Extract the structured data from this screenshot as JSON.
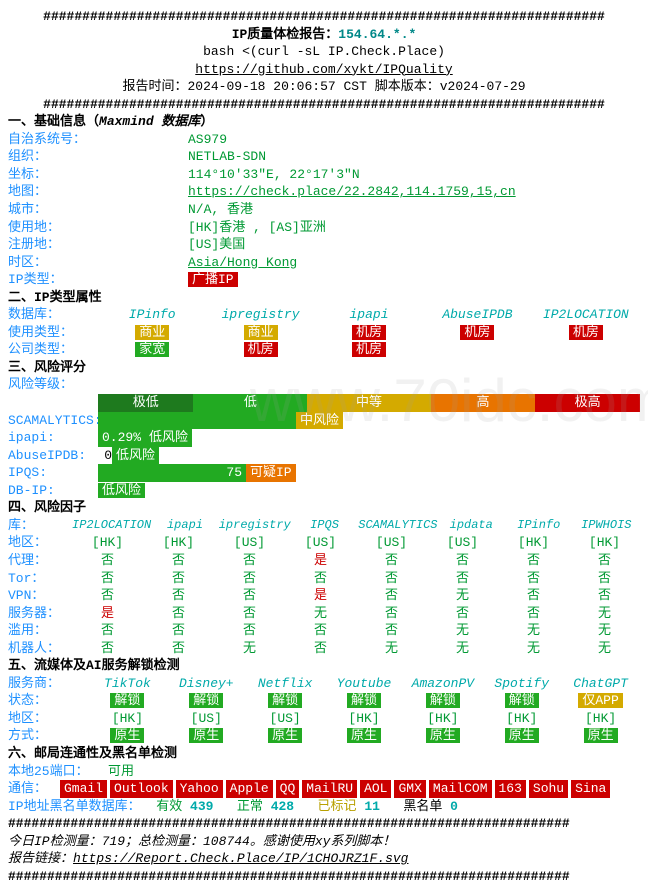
{
  "header": {
    "hashline": "########################################################################",
    "title_prefix": "IP质量体检报告：",
    "ip": "154.64.*.*",
    "bash_cmd": "bash <(curl -sL IP.Check.Place)",
    "github_url": "https://github.com/xykt/IPQuality",
    "time_prefix": "报告时间：",
    "time": "2024-09-18 20:06:57 CST",
    "version_prefix": "  脚本版本：",
    "version": "v2024-07-29"
  },
  "section1": {
    "title": "一、基础信息（",
    "title_ital": "Maxmind 数据库",
    "title_end": "）",
    "asn_lbl": "自治系统号：",
    "asn_val": "AS979",
    "org_lbl": "组织：",
    "org_val": "NETLAB-SDN",
    "coord_lbl": "坐标：",
    "coord_val": "114°10'33\"E, 22°17'3\"N",
    "map_lbl": "地图：",
    "map_val": "https://check.place/22.2842,114.1759,15,cn",
    "city_lbl": "城市：",
    "city_val": "N/A, 香港",
    "use_lbl": "使用地：",
    "use_val": "[HK]香港 , [AS]亚洲",
    "reg_lbl": "注册地：",
    "reg_val": "[US]美国",
    "tz_lbl": "时区：",
    "tz_val": "Asia/Hong_Kong",
    "type_lbl": "IP类型：",
    "type_val": "广播IP"
  },
  "section2": {
    "title": "二、IP类型属性",
    "db_lbl": "数据库：",
    "cols": [
      "IPinfo",
      "ipregistry",
      "ipapi",
      "AbuseIPDB",
      "IP2LOCATION"
    ],
    "usetype_lbl": "使用类型：",
    "usetype": [
      "商业",
      "商业",
      "机房",
      "机房",
      "机房"
    ],
    "usetype_colors": [
      "bg-yellow",
      "bg-yellow",
      "bg-red",
      "bg-red",
      "bg-red"
    ],
    "comptype_lbl": "公司类型：",
    "comptype": [
      "家宽",
      "机房",
      "机房"
    ],
    "comptype_colors": [
      "bg-green",
      "bg-red",
      "bg-red"
    ]
  },
  "section3": {
    "title": "三、风险评分",
    "level_lbl": "风险等级：",
    "levels": [
      "极低",
      "低",
      "中等",
      "高",
      "极高"
    ],
    "level_colors": [
      "#1e7a1e",
      "#22aa22",
      "#d4aa00",
      "#e87400",
      "#cc0000"
    ],
    "level_widths": [
      90,
      110,
      120,
      100,
      100
    ],
    "scam_lbl": "SCAMALYTICS:",
    "scam_bar_w": 190,
    "scam_txt": "中风险",
    "scam_cls": "bg-yellow",
    "ipapi_lbl": "ipapi:",
    "ipapi_val": "0.29%",
    "ipapi_bar_w": 60,
    "ipapi_txt": "低风险",
    "ipapi_cls": "bg-green",
    "abuse_lbl": "AbuseIPDB:",
    "abuse_pre": "0",
    "abuse_txt": "低风险",
    "abuse_cls": "bg-green",
    "ipqs_lbl": "IPQS:",
    "ipqs_bar_w": 140,
    "ipqs_val": "75",
    "ipqs_txt": "可疑IP",
    "ipqs_cls": "bg-orange",
    "dbip_lbl": "DB-IP:",
    "dbip_txt": "低风险",
    "dbip_cls": "bg-green"
  },
  "section4": {
    "title": "四、风险因子",
    "db_lbl": "库：",
    "cols": [
      "IP2LOCATION",
      "ipapi",
      "ipregistry",
      "IPQS",
      "SCAMALYTICS",
      "ipdata",
      "IPinfo",
      "IPWHOIS"
    ],
    "rows": [
      {
        "lbl": "地区：",
        "vals": [
          "[HK]",
          "[HK]",
          "[US]",
          "[US]",
          "[US]",
          "[US]",
          "[HK]",
          "[HK]"
        ],
        "cls": [
          "green",
          "green",
          "green",
          "green",
          "green",
          "green",
          "green",
          "green"
        ]
      },
      {
        "lbl": "代理：",
        "vals": [
          "否",
          "否",
          "否",
          "是",
          "否",
          "否",
          "否",
          "否"
        ],
        "cls": [
          "green",
          "green",
          "green",
          "red",
          "green",
          "green",
          "green",
          "green"
        ]
      },
      {
        "lbl": "Tor：",
        "vals": [
          "否",
          "否",
          "否",
          "否",
          "否",
          "否",
          "否",
          "否"
        ],
        "cls": [
          "green",
          "green",
          "green",
          "green",
          "green",
          "green",
          "green",
          "green"
        ]
      },
      {
        "lbl": "VPN：",
        "vals": [
          "否",
          "否",
          "否",
          "是",
          "否",
          "无",
          "否",
          "否"
        ],
        "cls": [
          "green",
          "green",
          "green",
          "red",
          "green",
          "green",
          "green",
          "green"
        ]
      },
      {
        "lbl": "服务器：",
        "vals": [
          "是",
          "否",
          "否",
          "无",
          "否",
          "否",
          "否",
          "无"
        ],
        "cls": [
          "red",
          "green",
          "green",
          "green",
          "green",
          "green",
          "green",
          "green"
        ]
      },
      {
        "lbl": "滥用：",
        "vals": [
          "否",
          "否",
          "否",
          "否",
          "否",
          "无",
          "无",
          "无"
        ],
        "cls": [
          "green",
          "green",
          "green",
          "green",
          "green",
          "green",
          "green",
          "green"
        ]
      },
      {
        "lbl": "机器人：",
        "vals": [
          "否",
          "否",
          "无",
          "否",
          "无",
          "无",
          "无",
          "无"
        ],
        "cls": [
          "green",
          "green",
          "green",
          "green",
          "green",
          "green",
          "green",
          "green"
        ]
      }
    ]
  },
  "section5": {
    "title": "五、流媒体及AI服务解锁检测",
    "prov_lbl": "服务商：",
    "cols": [
      "TikTok",
      "Disney+",
      "Netflix",
      "Youtube",
      "AmazonPV",
      "Spotify",
      "ChatGPT"
    ],
    "status_lbl": "状态：",
    "status": [
      "解锁",
      "解锁",
      "解锁",
      "解锁",
      "解锁",
      "解锁",
      "仅APP"
    ],
    "status_cls": [
      "bg-green",
      "bg-green",
      "bg-green",
      "bg-green",
      "bg-green",
      "bg-green",
      "bg-yellow"
    ],
    "region_lbl": "地区：",
    "region": [
      "[HK]",
      "[US]",
      "[US]",
      "[HK]",
      "[HK]",
      "[HK]",
      "[HK]"
    ],
    "method_lbl": "方式：",
    "method": [
      "原生",
      "原生",
      "原生",
      "原生",
      "原生",
      "原生",
      "原生"
    ]
  },
  "section6": {
    "title": "六、邮局连通性及黑名单检测",
    "port_lbl": "本地25端口：",
    "port_val": "可用",
    "comm_lbl": "通信：",
    "comm": [
      "Gmail",
      "Outlook",
      "Yahoo",
      "Apple",
      "QQ",
      "MailRU",
      "AOL",
      "GMX",
      "MailCOM",
      "163",
      "Sohu",
      "Sina"
    ],
    "bl_lbl": "IP地址黑名单数据库：",
    "bl_valid_lbl": "有效",
    "bl_valid": "439",
    "bl_ok_lbl": "正常",
    "bl_ok": "428",
    "bl_mark_lbl": "已标记",
    "bl_mark": "11",
    "bl_black_lbl": "黑名单",
    "bl_black": "0"
  },
  "footer": {
    "stats": "今日IP检测量：719；总检测量：108744。感谢使用xy系列脚本！",
    "link_lbl": "报告链接：",
    "link": "https://Report.Check.Place/IP/1CHOJRZ1F.svg"
  },
  "watermark": "www.70idc.com"
}
